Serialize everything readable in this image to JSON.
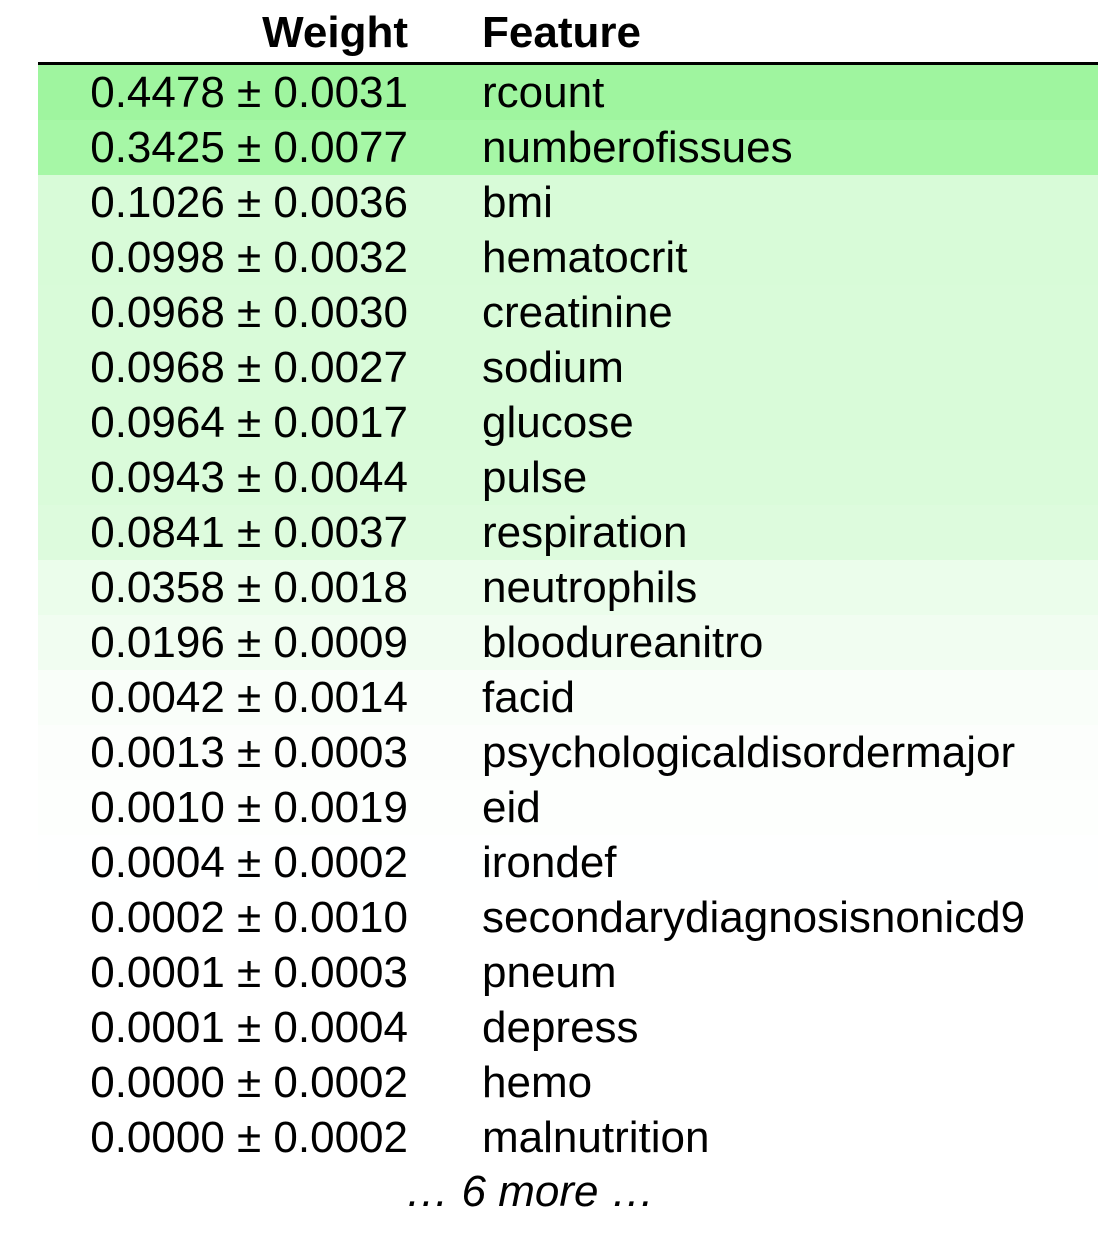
{
  "header": {
    "weight_label": "Weight",
    "feature_label": "Feature"
  },
  "rows": [
    {
      "weight": "0.4478 ± 0.0031",
      "feature": "rcount",
      "intensity": 0.4478,
      "color": "#9ff59f"
    },
    {
      "weight": "0.3425 ± 0.0077",
      "feature": "numberofissues",
      "intensity": 0.3425,
      "color": "#a6f7a6"
    },
    {
      "weight": "0.1026 ± 0.0036",
      "feature": "bmi",
      "intensity": 0.1026,
      "color": "#d8fbd8"
    },
    {
      "weight": "0.0998 ± 0.0032",
      "feature": "hematocrit",
      "intensity": 0.0998,
      "color": "#d8fbd8"
    },
    {
      "weight": "0.0968 ± 0.0030",
      "feature": "creatinine",
      "intensity": 0.0968,
      "color": "#d9fbd9"
    },
    {
      "weight": "0.0968 ± 0.0027",
      "feature": "sodium",
      "intensity": 0.0968,
      "color": "#d9fbd9"
    },
    {
      "weight": "0.0964 ± 0.0017",
      "feature": "glucose",
      "intensity": 0.0964,
      "color": "#d9fbd9"
    },
    {
      "weight": "0.0943 ± 0.0044",
      "feature": "pulse",
      "intensity": 0.0943,
      "color": "#dafbda"
    },
    {
      "weight": "0.0841 ± 0.0037",
      "feature": "respiration",
      "intensity": 0.0841,
      "color": "#ddfbdd"
    },
    {
      "weight": "0.0358 ± 0.0018",
      "feature": "neutrophils",
      "intensity": 0.0358,
      "color": "#ebfdeb"
    },
    {
      "weight": "0.0196 ± 0.0009",
      "feature": "bloodureanitro",
      "intensity": 0.0196,
      "color": "#f1fdf1"
    },
    {
      "weight": "0.0042 ± 0.0014",
      "feature": "facid",
      "intensity": 0.0042,
      "color": "#f9fef9"
    },
    {
      "weight": "0.0013 ± 0.0003",
      "feature": "psychologicaldisordermajor",
      "intensity": 0.0013,
      "color": "#fcfefc"
    },
    {
      "weight": "0.0010 ± 0.0019",
      "feature": "eid",
      "intensity": 0.001,
      "color": "#fdfffd"
    },
    {
      "weight": "0.0004 ± 0.0002",
      "feature": "irondef",
      "intensity": 0.0004,
      "color": "#feffff"
    },
    {
      "weight": "0.0002 ± 0.0010",
      "feature": "secondarydiagnosisnonicd9",
      "intensity": 0.0002,
      "color": "#ffffff"
    },
    {
      "weight": "0.0001 ± 0.0003",
      "feature": "pneum",
      "intensity": 0.0001,
      "color": "#ffffff"
    },
    {
      "weight": "0.0001 ± 0.0004",
      "feature": "depress",
      "intensity": 0.0001,
      "color": "#ffffff"
    },
    {
      "weight": "0.0000 ± 0.0002",
      "feature": "hemo",
      "intensity": 0.0,
      "color": "#ffffff"
    },
    {
      "weight": "0.0000 ± 0.0002",
      "feature": "malnutrition",
      "intensity": 0.0,
      "color": "#ffffff"
    }
  ],
  "more_label": "… 6 more …"
}
